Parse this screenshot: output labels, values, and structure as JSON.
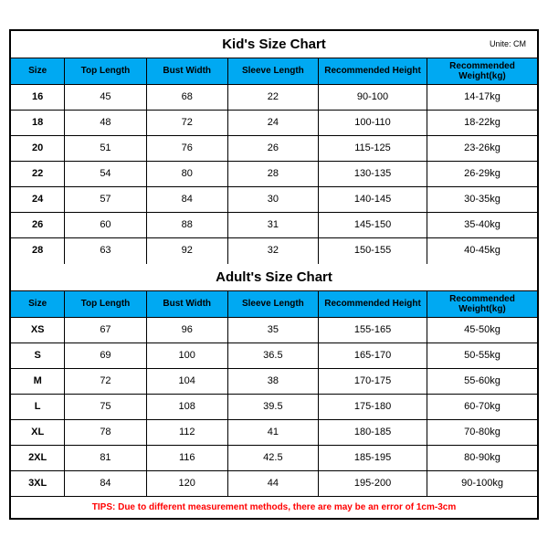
{
  "colors": {
    "header_bg": "#00a9f2",
    "border": "#000000",
    "tips_color": "#ff0000",
    "background": "#ffffff",
    "text": "#000000"
  },
  "unit_label": "Unite: CM",
  "columns": [
    {
      "label": "Size"
    },
    {
      "label": "Top Length"
    },
    {
      "label": "Bust Width"
    },
    {
      "label": "Sleeve Length"
    },
    {
      "label": "Recommended Height"
    },
    {
      "label": "Recommended Weight(kg)"
    }
  ],
  "kids": {
    "title": "Kid's Size Chart",
    "rows": [
      [
        "16",
        "45",
        "68",
        "22",
        "90-100",
        "14-17kg"
      ],
      [
        "18",
        "48",
        "72",
        "24",
        "100-110",
        "18-22kg"
      ],
      [
        "20",
        "51",
        "76",
        "26",
        "115-125",
        "23-26kg"
      ],
      [
        "22",
        "54",
        "80",
        "28",
        "130-135",
        "26-29kg"
      ],
      [
        "24",
        "57",
        "84",
        "30",
        "140-145",
        "30-35kg"
      ],
      [
        "26",
        "60",
        "88",
        "31",
        "145-150",
        "35-40kg"
      ],
      [
        "28",
        "63",
        "92",
        "32",
        "150-155",
        "40-45kg"
      ]
    ]
  },
  "adults": {
    "title": "Adult's Size Chart",
    "rows": [
      [
        "XS",
        "67",
        "96",
        "35",
        "155-165",
        "45-50kg"
      ],
      [
        "S",
        "69",
        "100",
        "36.5",
        "165-170",
        "50-55kg"
      ],
      [
        "M",
        "72",
        "104",
        "38",
        "170-175",
        "55-60kg"
      ],
      [
        "L",
        "75",
        "108",
        "39.5",
        "175-180",
        "60-70kg"
      ],
      [
        "XL",
        "78",
        "112",
        "41",
        "180-185",
        "70-80kg"
      ],
      [
        "2XL",
        "81",
        "116",
        "42.5",
        "185-195",
        "80-90kg"
      ],
      [
        "3XL",
        "84",
        "120",
        "44",
        "195-200",
        "90-100kg"
      ]
    ]
  },
  "tips": "TIPS: Due to different measurement methods, there are may be an error of 1cm-3cm"
}
